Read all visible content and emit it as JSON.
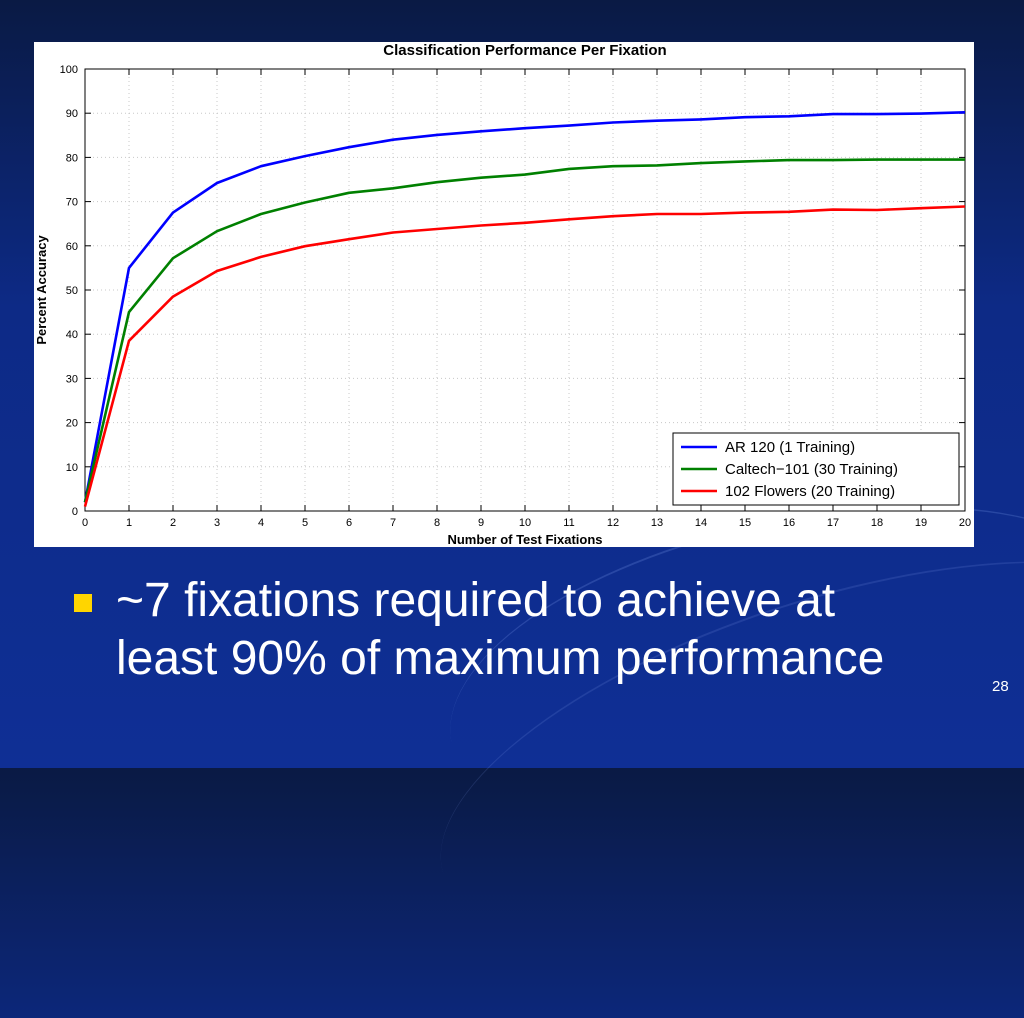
{
  "slide": {
    "bullet_text": "~7 fixations required to achieve at least 90% of maximum performance",
    "page_number": "28"
  },
  "colors": {
    "background": "#0f2f95",
    "bullet": "#ffd500"
  },
  "chart_data": {
    "type": "line",
    "title": "Classification Performance Per Fixation",
    "xlabel": "Number of Test Fixations",
    "ylabel": "Percent Accuracy",
    "xlim": [
      0,
      20
    ],
    "ylim": [
      0,
      100
    ],
    "x_ticks": [
      0,
      1,
      2,
      3,
      4,
      5,
      6,
      7,
      8,
      9,
      10,
      11,
      12,
      13,
      14,
      15,
      16,
      17,
      18,
      19,
      20
    ],
    "y_ticks": [
      0,
      10,
      20,
      30,
      40,
      50,
      60,
      70,
      80,
      90,
      100
    ],
    "grid": true,
    "legend_position": "bottom-right",
    "x": [
      0,
      1,
      2,
      3,
      4,
      5,
      6,
      7,
      8,
      9,
      10,
      11,
      12,
      13,
      14,
      15,
      16,
      17,
      18,
      19,
      20
    ],
    "series": [
      {
        "name": "AR 120 (1 Training)",
        "color": "#0000ff",
        "values": [
          2,
          55,
          67.5,
          74.2,
          78,
          80.3,
          82.3,
          84,
          85.1,
          85.9,
          86.6,
          87.2,
          87.9,
          88.3,
          88.6,
          89.1,
          89.3,
          89.8,
          89.8,
          89.9,
          90.2
        ]
      },
      {
        "name": "Caltech−101 (30 Training)",
        "color": "#008000",
        "values": [
          2,
          45,
          57.2,
          63.3,
          67.2,
          69.8,
          72,
          73,
          74.4,
          75.4,
          76.1,
          77.4,
          78,
          78.2,
          78.7,
          79.1,
          79.4,
          79.4,
          79.5,
          79.5,
          79.5
        ]
      },
      {
        "name": "102 Flowers (20 Training)",
        "color": "#ff0000",
        "values": [
          1,
          38.5,
          48.5,
          54.3,
          57.5,
          59.9,
          61.5,
          63,
          63.8,
          64.6,
          65.2,
          66,
          66.7,
          67.2,
          67.2,
          67.5,
          67.7,
          68.2,
          68.1,
          68.5,
          68.9
        ]
      }
    ]
  }
}
